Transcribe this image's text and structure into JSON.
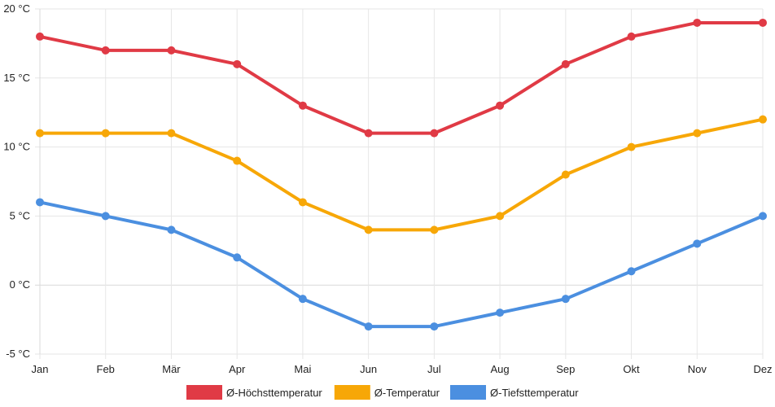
{
  "chart_data": {
    "type": "line",
    "title": "",
    "xlabel": "",
    "ylabel": "",
    "categories": [
      "Jan",
      "Feb",
      "Mär",
      "Apr",
      "Mai",
      "Jun",
      "Jul",
      "Aug",
      "Sep",
      "Okt",
      "Nov",
      "Dez"
    ],
    "ylim": [
      -5,
      20
    ],
    "y_ticks": [
      -5,
      0,
      5,
      10,
      15,
      20
    ],
    "y_tick_labels": [
      "-5 °C",
      "0 °C",
      "5 °C",
      "10 °C",
      "15 °C",
      "20 °C"
    ],
    "grid": true,
    "legend_position": "bottom-center",
    "series": [
      {
        "name": "Ø-Höchsttemperatur",
        "color": "#e03a45",
        "values": [
          18,
          17,
          17,
          16,
          13,
          11,
          11,
          13,
          16,
          18,
          19,
          19
        ]
      },
      {
        "name": "Ø-Temperatur",
        "color": "#f7a707",
        "values": [
          11,
          11,
          11,
          9,
          6,
          4,
          4,
          5,
          8,
          10,
          11,
          12
        ]
      },
      {
        "name": "Ø-Tiefsttemperatur",
        "color": "#4b8fe0",
        "values": [
          6,
          5,
          4,
          2,
          -1,
          -3,
          -3,
          -2,
          -1,
          1,
          3,
          5
        ]
      }
    ]
  }
}
